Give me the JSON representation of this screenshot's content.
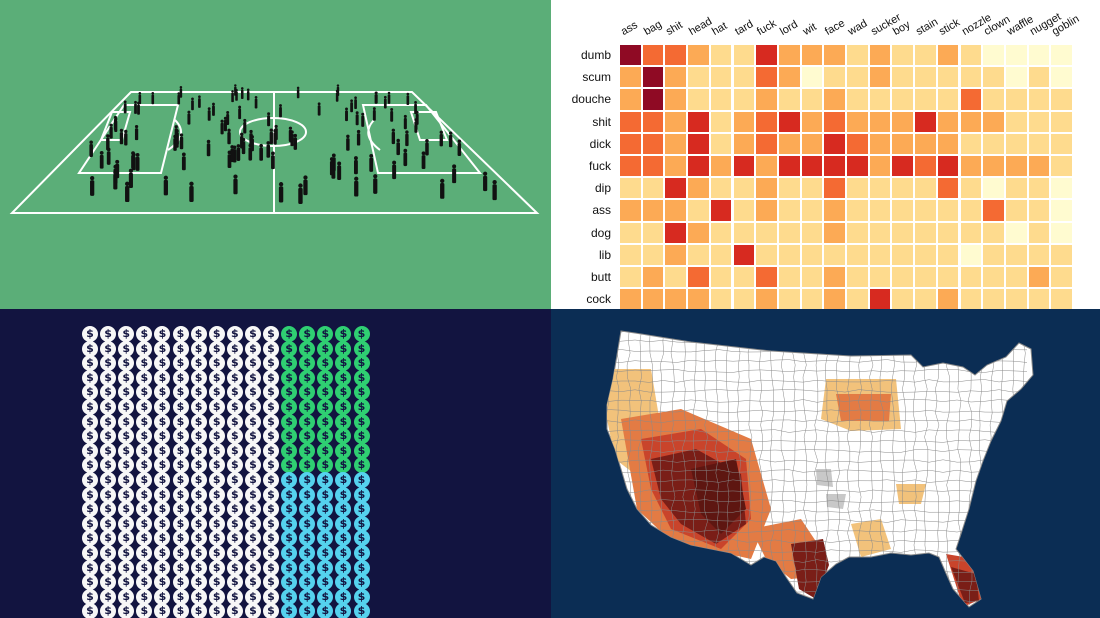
{
  "heatmap": {
    "columns": [
      "ass",
      "bag",
      "shit",
      "head",
      "hat",
      "tard",
      "fuck",
      "lord",
      "wit",
      "face",
      "wad",
      "sucker",
      "boy",
      "stain",
      "stick",
      "nozzle",
      "clown",
      "waffle",
      "nugget",
      "goblin"
    ],
    "rows": [
      "dumb",
      "scum",
      "douche",
      "shit",
      "dick",
      "fuck",
      "dip",
      "ass",
      "dog",
      "lib",
      "butt",
      "cock"
    ],
    "levels": [
      [
        5,
        3,
        3,
        2,
        1,
        1,
        4,
        2,
        2,
        2,
        1,
        2,
        1,
        1,
        2,
        1,
        0,
        0,
        0,
        0
      ],
      [
        2,
        5,
        2,
        1,
        1,
        1,
        3,
        2,
        0,
        1,
        1,
        2,
        1,
        1,
        1,
        1,
        1,
        0,
        1,
        0
      ],
      [
        2,
        5,
        2,
        1,
        1,
        1,
        2,
        1,
        1,
        2,
        1,
        1,
        1,
        1,
        1,
        3,
        1,
        1,
        1,
        1
      ],
      [
        3,
        3,
        2,
        4,
        1,
        2,
        3,
        4,
        2,
        3,
        2,
        2,
        2,
        4,
        2,
        2,
        2,
        1,
        1,
        1
      ],
      [
        3,
        3,
        2,
        4,
        1,
        2,
        3,
        2,
        2,
        4,
        3,
        2,
        2,
        2,
        2,
        1,
        1,
        1,
        1,
        1
      ],
      [
        3,
        3,
        2,
        4,
        2,
        4,
        2,
        4,
        4,
        4,
        4,
        2,
        4,
        3,
        4,
        2,
        2,
        2,
        2,
        1
      ],
      [
        1,
        1,
        4,
        2,
        1,
        1,
        2,
        1,
        1,
        3,
        1,
        1,
        1,
        1,
        3,
        1,
        0,
        1,
        1,
        0
      ],
      [
        2,
        2,
        2,
        1,
        4,
        1,
        2,
        1,
        1,
        2,
        1,
        1,
        1,
        1,
        1,
        1,
        3,
        1,
        1,
        0
      ],
      [
        1,
        1,
        4,
        2,
        1,
        1,
        1,
        1,
        1,
        2,
        1,
        1,
        1,
        1,
        1,
        1,
        1,
        0,
        1,
        0
      ],
      [
        1,
        1,
        2,
        1,
        1,
        4,
        1,
        1,
        1,
        1,
        1,
        1,
        1,
        1,
        1,
        0,
        1,
        1,
        1,
        1
      ],
      [
        1,
        2,
        1,
        3,
        1,
        1,
        3,
        1,
        1,
        2,
        1,
        1,
        1,
        1,
        1,
        1,
        1,
        1,
        2,
        1
      ],
      [
        2,
        2,
        2,
        2,
        1,
        1,
        2,
        1,
        1,
        2,
        1,
        4,
        1,
        1,
        2,
        1,
        1,
        1,
        1,
        1
      ]
    ]
  },
  "coins": {
    "symbol": "$",
    "rows": 20,
    "cols": 16,
    "white_cols": 11,
    "green_rows": 10
  },
  "colors": {
    "heat": [
      "#fffbd0",
      "#fedb8e",
      "#fcaa55",
      "#f46a33",
      "#d72a20",
      "#8f0a24"
    ],
    "field": "#5bae78",
    "coin_white": "#f7f7f7",
    "coin_green": "#2fcf72",
    "coin_cyan": "#55d2ee",
    "map_bg": "#0b2d54"
  }
}
